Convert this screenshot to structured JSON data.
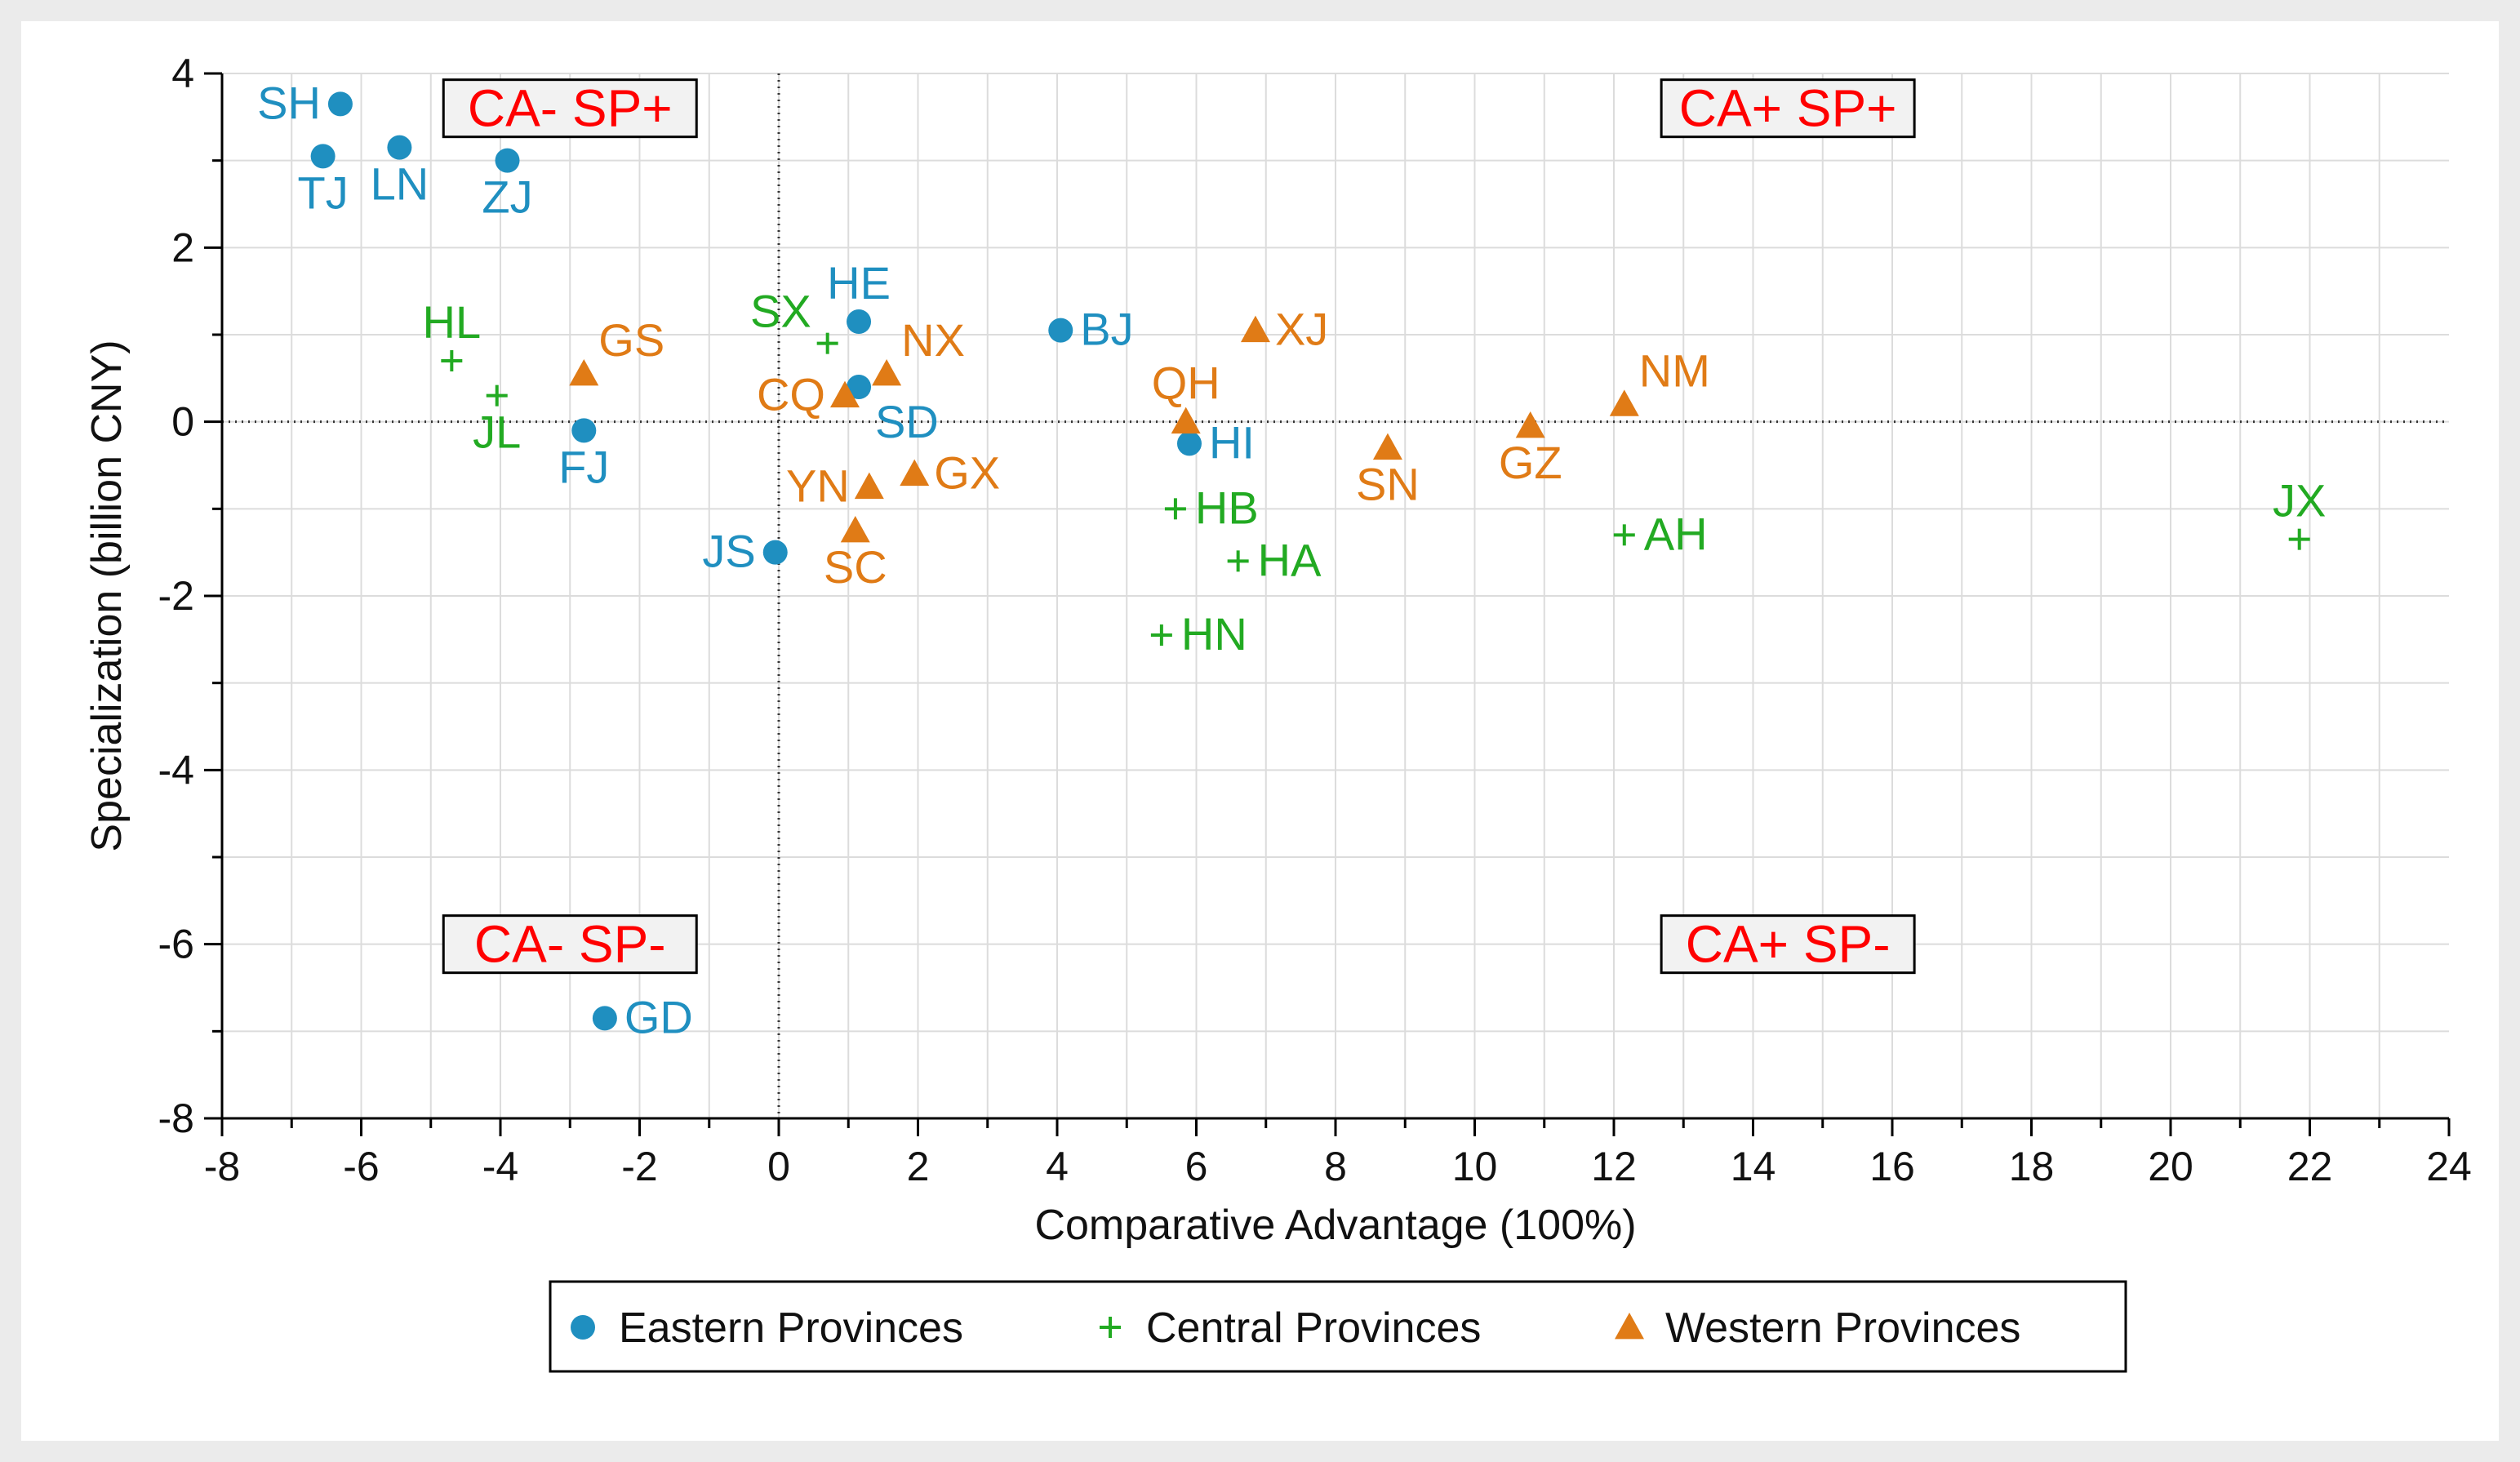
{
  "chart_data": {
    "type": "scatter",
    "title": "",
    "xlabel": "Comparative Advantage  (100%)",
    "ylabel": "Specialization  (billion CNY)",
    "xlim": [
      -8,
      24
    ],
    "ylim": [
      -8,
      4
    ],
    "x_ticks": [
      -8,
      -6,
      -4,
      -2,
      0,
      2,
      4,
      6,
      8,
      10,
      12,
      14,
      16,
      18,
      20,
      22,
      24
    ],
    "y_ticks": [
      -8,
      -6,
      -4,
      -2,
      0,
      2,
      4
    ],
    "grid": true,
    "reference_lines": {
      "x": 0,
      "y": 0
    },
    "quadrant_labels": [
      {
        "text": "CA- SP+",
        "quadrant": "top-left"
      },
      {
        "text": "CA+ SP+",
        "quadrant": "top-right"
      },
      {
        "text": "CA- SP-",
        "quadrant": "bottom-left"
      },
      {
        "text": "CA+ SP-",
        "quadrant": "bottom-right"
      }
    ],
    "legend_position": "bottom",
    "series": [
      {
        "name": "Eastern Provinces",
        "marker": "circle",
        "color": "#1f8fc0",
        "points": [
          {
            "label": "SH",
            "x": -6.3,
            "y": 3.65,
            "label_pos": "left"
          },
          {
            "label": "TJ",
            "x": -6.55,
            "y": 3.05,
            "label_pos": "below"
          },
          {
            "label": "LN",
            "x": -5.45,
            "y": 3.15,
            "label_pos": "below"
          },
          {
            "label": "ZJ",
            "x": -3.9,
            "y": 3.0,
            "label_pos": "below"
          },
          {
            "label": "FJ",
            "x": -2.8,
            "y": -0.1,
            "label_pos": "below"
          },
          {
            "label": "HE",
            "x": 1.15,
            "y": 1.15,
            "label_pos": "above"
          },
          {
            "label": "SD",
            "x": 1.15,
            "y": 0.4,
            "label_pos": "below-right"
          },
          {
            "label": "BJ",
            "x": 4.05,
            "y": 1.05,
            "label_pos": "right"
          },
          {
            "label": "HI",
            "x": 5.9,
            "y": -0.25,
            "label_pos": "right"
          },
          {
            "label": "JS",
            "x": -0.05,
            "y": -1.5,
            "label_pos": "left"
          },
          {
            "label": "GD",
            "x": -2.5,
            "y": -6.85,
            "label_pos": "right"
          }
        ]
      },
      {
        "name": "Central Provinces",
        "marker": "plus",
        "color": "#22aa22",
        "points": [
          {
            "label": "HL",
            "x": -4.7,
            "y": 0.7,
            "label_pos": "above"
          },
          {
            "label": "JL",
            "x": -4.05,
            "y": 0.3,
            "label_pos": "below"
          },
          {
            "label": "SX",
            "x": 0.7,
            "y": 0.9,
            "label_pos": "above-left"
          },
          {
            "label": "HB",
            "x": 5.7,
            "y": -1.0,
            "label_pos": "right"
          },
          {
            "label": "HA",
            "x": 6.6,
            "y": -1.6,
            "label_pos": "right"
          },
          {
            "label": "HN",
            "x": 5.5,
            "y": -2.45,
            "label_pos": "right"
          },
          {
            "label": "AH",
            "x": 12.15,
            "y": -1.3,
            "label_pos": "right"
          },
          {
            "label": "JX",
            "x": 21.85,
            "y": -1.35,
            "label_pos": "above"
          }
        ]
      },
      {
        "name": "Western Provinces",
        "marker": "triangle",
        "color": "#e07b16",
        "points": [
          {
            "label": "GS",
            "x": -2.8,
            "y": 0.55,
            "label_pos": "above-right"
          },
          {
            "label": "CQ",
            "x": 0.95,
            "y": 0.3,
            "label_pos": "left"
          },
          {
            "label": "NX",
            "x": 1.55,
            "y": 0.55,
            "label_pos": "above-right"
          },
          {
            "label": "YN",
            "x": 1.3,
            "y": -0.75,
            "label_pos": "left"
          },
          {
            "label": "GX",
            "x": 1.95,
            "y": -0.6,
            "label_pos": "right"
          },
          {
            "label": "SC",
            "x": 1.1,
            "y": -1.25,
            "label_pos": "below"
          },
          {
            "label": "QH",
            "x": 5.85,
            "y": 0.0,
            "label_pos": "above"
          },
          {
            "label": "XJ",
            "x": 6.85,
            "y": 1.05,
            "label_pos": "right"
          },
          {
            "label": "SN",
            "x": 8.75,
            "y": -0.3,
            "label_pos": "below"
          },
          {
            "label": "GZ",
            "x": 10.8,
            "y": -0.05,
            "label_pos": "below"
          },
          {
            "label": "NM",
            "x": 12.15,
            "y": 0.2,
            "label_pos": "above-right"
          }
        ]
      }
    ]
  },
  "colors": {
    "background": "#ffffff",
    "outer_frame": "#ebebeb",
    "grid": "#dcdcdc",
    "axis": "#000000",
    "quadrant_text": "#ff0000",
    "quadrant_box": "#f2f2f2"
  }
}
